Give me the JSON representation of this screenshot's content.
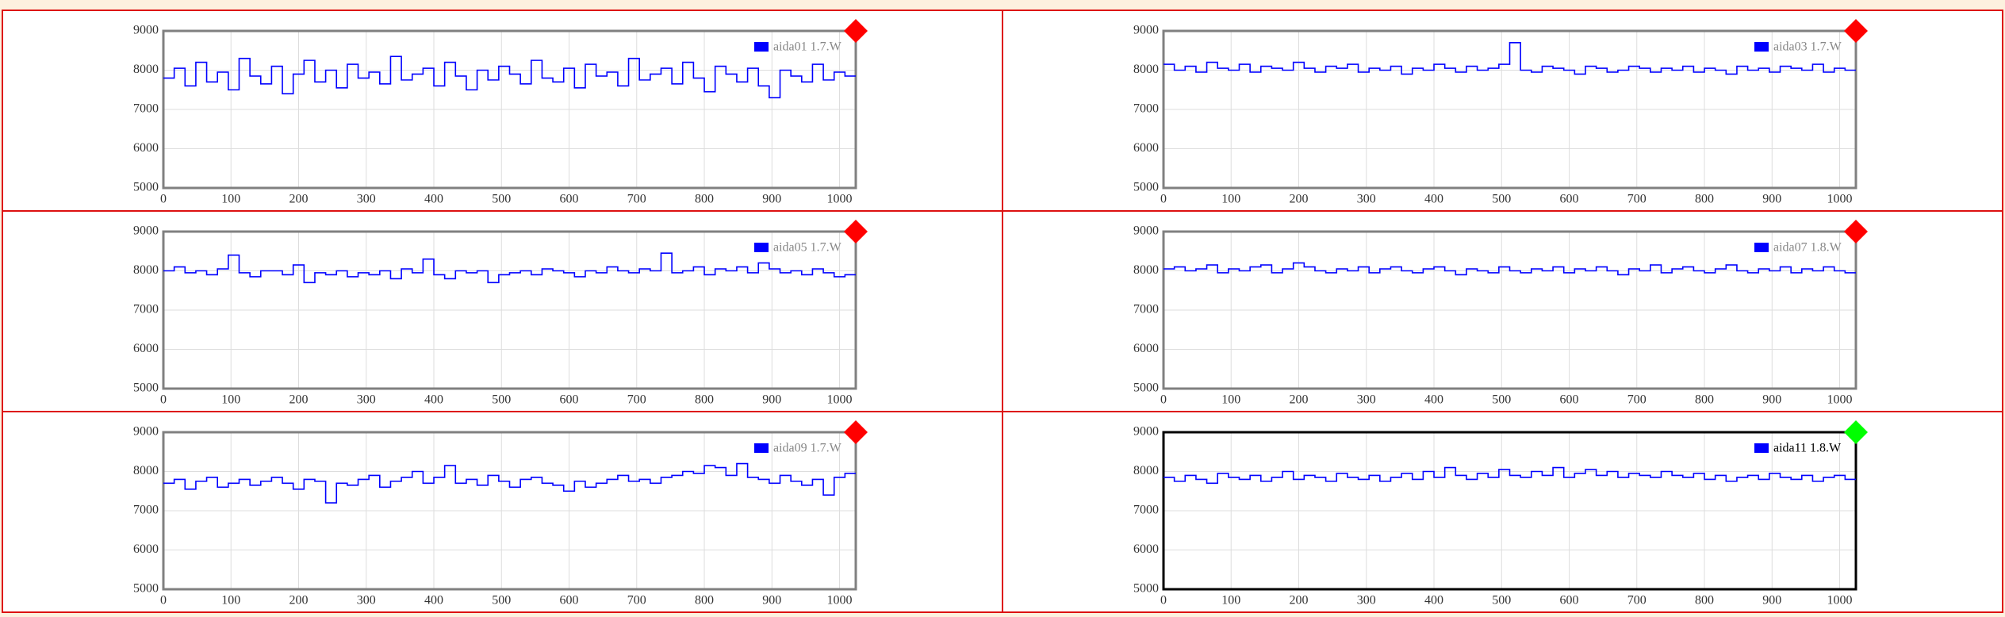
{
  "chart_data": [
    {
      "type": "line",
      "xlim": [
        0,
        1024
      ],
      "ylim": [
        5000,
        9000
      ],
      "xticks": [
        0,
        100,
        200,
        300,
        400,
        500,
        600,
        700,
        800,
        900,
        1000
      ],
      "yticks": [
        5000,
        6000,
        7000,
        8000,
        9000
      ],
      "grid": true,
      "status_color": "#ff0000",
      "frame_color": "#808080",
      "x": [
        0,
        16,
        32,
        48,
        64,
        80,
        96,
        112,
        128,
        144,
        160,
        176,
        192,
        208,
        224,
        240,
        256,
        272,
        288,
        304,
        320,
        336,
        352,
        368,
        384,
        400,
        416,
        432,
        448,
        464,
        480,
        496,
        512,
        528,
        544,
        560,
        576,
        592,
        608,
        624,
        640,
        656,
        672,
        688,
        704,
        720,
        736,
        752,
        768,
        784,
        800,
        816,
        832,
        848,
        864,
        880,
        896,
        912,
        928,
        944,
        960,
        976,
        992,
        1008
      ],
      "series": [
        {
          "name": "aida01 1.7.W",
          "color": "#0000ff",
          "values": [
            7800,
            8050,
            7600,
            8200,
            7700,
            7950,
            7500,
            8300,
            7850,
            7650,
            8100,
            7400,
            7900,
            8250,
            7700,
            8000,
            7550,
            8150,
            7800,
            7950,
            7650,
            8350,
            7750,
            7900,
            8050,
            7600,
            8200,
            7850,
            7500,
            8000,
            7750,
            8100,
            7900,
            7650,
            8250,
            7800,
            7700,
            8050,
            7550,
            8150,
            7850,
            7950,
            7600,
            8300,
            7750,
            7900,
            8050,
            7650,
            8200,
            7800,
            7450,
            8100,
            7900,
            7700,
            8050,
            7600,
            7300,
            8000,
            7850,
            7700,
            8150,
            7750,
            7950,
            7850
          ]
        }
      ]
    },
    {
      "type": "line",
      "xlim": [
        0,
        1024
      ],
      "ylim": [
        5000,
        9000
      ],
      "xticks": [
        0,
        100,
        200,
        300,
        400,
        500,
        600,
        700,
        800,
        900,
        1000
      ],
      "yticks": [
        5000,
        6000,
        7000,
        8000,
        9000
      ],
      "grid": true,
      "status_color": "#ff0000",
      "frame_color": "#808080",
      "x": [
        0,
        16,
        32,
        48,
        64,
        80,
        96,
        112,
        128,
        144,
        160,
        176,
        192,
        208,
        224,
        240,
        256,
        272,
        288,
        304,
        320,
        336,
        352,
        368,
        384,
        400,
        416,
        432,
        448,
        464,
        480,
        496,
        512,
        528,
        544,
        560,
        576,
        592,
        608,
        624,
        640,
        656,
        672,
        688,
        704,
        720,
        736,
        752,
        768,
        784,
        800,
        816,
        832,
        848,
        864,
        880,
        896,
        912,
        928,
        944,
        960,
        976,
        992,
        1008
      ],
      "series": [
        {
          "name": "aida03 1.7.W",
          "color": "#0000ff",
          "values": [
            8150,
            8000,
            8100,
            7950,
            8200,
            8050,
            8000,
            8150,
            7950,
            8100,
            8050,
            8000,
            8200,
            8050,
            7950,
            8100,
            8050,
            8150,
            7950,
            8050,
            8000,
            8100,
            7900,
            8050,
            8000,
            8150,
            8050,
            7950,
            8100,
            8000,
            8050,
            8150,
            8700,
            8000,
            7950,
            8100,
            8050,
            8000,
            7900,
            8100,
            8050,
            7950,
            8000,
            8100,
            8050,
            7950,
            8050,
            8000,
            8100,
            7950,
            8050,
            8000,
            7900,
            8100,
            8000,
            8050,
            7950,
            8100,
            8050,
            8000,
            8150,
            7950,
            8050,
            8000
          ]
        }
      ]
    },
    {
      "type": "line",
      "xlim": [
        0,
        1024
      ],
      "ylim": [
        5000,
        9000
      ],
      "xticks": [
        0,
        100,
        200,
        300,
        400,
        500,
        600,
        700,
        800,
        900,
        1000
      ],
      "yticks": [
        5000,
        6000,
        7000,
        8000,
        9000
      ],
      "grid": true,
      "status_color": "#ff0000",
      "frame_color": "#808080",
      "x": [
        0,
        16,
        32,
        48,
        64,
        80,
        96,
        112,
        128,
        144,
        160,
        176,
        192,
        208,
        224,
        240,
        256,
        272,
        288,
        304,
        320,
        336,
        352,
        368,
        384,
        400,
        416,
        432,
        448,
        464,
        480,
        496,
        512,
        528,
        544,
        560,
        576,
        592,
        608,
        624,
        640,
        656,
        672,
        688,
        704,
        720,
        736,
        752,
        768,
        784,
        800,
        816,
        832,
        848,
        864,
        880,
        896,
        912,
        928,
        944,
        960,
        976,
        992,
        1008
      ],
      "series": [
        {
          "name": "aida05 1.7.W",
          "color": "#0000ff",
          "values": [
            8000,
            8100,
            7950,
            8000,
            7900,
            8050,
            8400,
            7950,
            7850,
            8000,
            8000,
            7900,
            8150,
            7700,
            7950,
            7900,
            8000,
            7850,
            7950,
            7900,
            8000,
            7800,
            8050,
            7950,
            8300,
            7900,
            7800,
            8000,
            7950,
            8000,
            7700,
            7900,
            7950,
            8000,
            7900,
            8050,
            8000,
            7950,
            7850,
            8000,
            7950,
            8100,
            8000,
            7950,
            8050,
            8000,
            8450,
            7950,
            8000,
            8100,
            7900,
            8050,
            8000,
            8100,
            7950,
            8200,
            8050,
            7950,
            8000,
            7900,
            8050,
            7950,
            7850,
            7900
          ]
        }
      ]
    },
    {
      "type": "line",
      "xlim": [
        0,
        1024
      ],
      "ylim": [
        5000,
        9000
      ],
      "xticks": [
        0,
        100,
        200,
        300,
        400,
        500,
        600,
        700,
        800,
        900,
        1000
      ],
      "yticks": [
        5000,
        6000,
        7000,
        8000,
        9000
      ],
      "grid": true,
      "status_color": "#ff0000",
      "frame_color": "#808080",
      "x": [
        0,
        16,
        32,
        48,
        64,
        80,
        96,
        112,
        128,
        144,
        160,
        176,
        192,
        208,
        224,
        240,
        256,
        272,
        288,
        304,
        320,
        336,
        352,
        368,
        384,
        400,
        416,
        432,
        448,
        464,
        480,
        496,
        512,
        528,
        544,
        560,
        576,
        592,
        608,
        624,
        640,
        656,
        672,
        688,
        704,
        720,
        736,
        752,
        768,
        784,
        800,
        816,
        832,
        848,
        864,
        880,
        896,
        912,
        928,
        944,
        960,
        976,
        992,
        1008
      ],
      "series": [
        {
          "name": "aida07 1.8.W",
          "color": "#0000ff",
          "values": [
            8050,
            8100,
            8000,
            8050,
            8150,
            7950,
            8050,
            8000,
            8100,
            8150,
            7950,
            8050,
            8200,
            8100,
            8000,
            7950,
            8050,
            8000,
            8100,
            7950,
            8050,
            8100,
            8000,
            7950,
            8050,
            8100,
            8000,
            7900,
            8050,
            8000,
            7950,
            8100,
            8000,
            7950,
            8050,
            8000,
            8100,
            7950,
            8050,
            8000,
            8100,
            8000,
            7900,
            8050,
            8000,
            8150,
            7950,
            8050,
            8100,
            8000,
            7950,
            8050,
            8150,
            8000,
            7950,
            8050,
            8000,
            8100,
            7950,
            8050,
            8000,
            8100,
            8000,
            7950
          ]
        }
      ]
    },
    {
      "type": "line",
      "xlim": [
        0,
        1024
      ],
      "ylim": [
        5000,
        9000
      ],
      "xticks": [
        0,
        100,
        200,
        300,
        400,
        500,
        600,
        700,
        800,
        900,
        1000
      ],
      "yticks": [
        5000,
        6000,
        7000,
        8000,
        9000
      ],
      "grid": true,
      "status_color": "#ff0000",
      "frame_color": "#808080",
      "x": [
        0,
        16,
        32,
        48,
        64,
        80,
        96,
        112,
        128,
        144,
        160,
        176,
        192,
        208,
        224,
        240,
        256,
        272,
        288,
        304,
        320,
        336,
        352,
        368,
        384,
        400,
        416,
        432,
        448,
        464,
        480,
        496,
        512,
        528,
        544,
        560,
        576,
        592,
        608,
        624,
        640,
        656,
        672,
        688,
        704,
        720,
        736,
        752,
        768,
        784,
        800,
        816,
        832,
        848,
        864,
        880,
        896,
        912,
        928,
        944,
        960,
        976,
        992,
        1008
      ],
      "series": [
        {
          "name": "aida09 1.7.W",
          "color": "#0000ff",
          "values": [
            7700,
            7800,
            7550,
            7750,
            7850,
            7600,
            7700,
            7800,
            7650,
            7750,
            7850,
            7700,
            7550,
            7800,
            7750,
            7200,
            7700,
            7650,
            7800,
            7900,
            7600,
            7750,
            7850,
            8000,
            7700,
            7850,
            8150,
            7700,
            7800,
            7650,
            7900,
            7750,
            7600,
            7800,
            7850,
            7700,
            7650,
            7500,
            7750,
            7600,
            7700,
            7800,
            7900,
            7750,
            7800,
            7700,
            7850,
            7900,
            8000,
            7950,
            8150,
            8100,
            7900,
            8200,
            7850,
            7800,
            7700,
            7900,
            7750,
            7650,
            7800,
            7400,
            7850,
            7950
          ]
        }
      ]
    },
    {
      "type": "line",
      "xlim": [
        0,
        1024
      ],
      "ylim": [
        5000,
        9000
      ],
      "xticks": [
        0,
        100,
        200,
        300,
        400,
        500,
        600,
        700,
        800,
        900,
        1000
      ],
      "yticks": [
        5000,
        6000,
        7000,
        8000,
        9000
      ],
      "grid": true,
      "status_color": "#00ff00",
      "frame_color": "#000000",
      "x": [
        0,
        16,
        32,
        48,
        64,
        80,
        96,
        112,
        128,
        144,
        160,
        176,
        192,
        208,
        224,
        240,
        256,
        272,
        288,
        304,
        320,
        336,
        352,
        368,
        384,
        400,
        416,
        432,
        448,
        464,
        480,
        496,
        512,
        528,
        544,
        560,
        576,
        592,
        608,
        624,
        640,
        656,
        672,
        688,
        704,
        720,
        736,
        752,
        768,
        784,
        800,
        816,
        832,
        848,
        864,
        880,
        896,
        912,
        928,
        944,
        960,
        976,
        992,
        1008
      ],
      "series": [
        {
          "name": "aida11 1.8.W",
          "color": "#0000ff",
          "values": [
            7850,
            7750,
            7900,
            7800,
            7700,
            7950,
            7850,
            7800,
            7900,
            7750,
            7850,
            8000,
            7800,
            7900,
            7850,
            7750,
            7950,
            7850,
            7800,
            7900,
            7750,
            7850,
            7950,
            7800,
            8000,
            7850,
            8100,
            7900,
            7800,
            7950,
            7850,
            8050,
            7900,
            7850,
            8000,
            7900,
            8100,
            7850,
            7950,
            8050,
            7900,
            8000,
            7850,
            7950,
            7900,
            7850,
            8000,
            7900,
            7850,
            7950,
            7800,
            7900,
            7750,
            7850,
            7900,
            7800,
            7950,
            7850,
            7800,
            7900,
            7750,
            7850,
            7900,
            7800
          ]
        }
      ]
    }
  ]
}
